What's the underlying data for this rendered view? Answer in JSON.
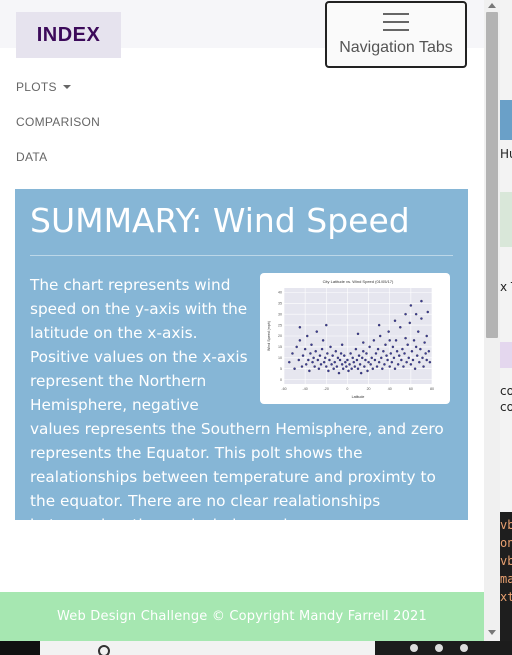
{
  "navbar": {
    "brand": "INDEX",
    "toggler_label": "Navigation Tabs",
    "toggler_icon": "hamburger-icon"
  },
  "nav": {
    "plots": "PLOTS",
    "comparison": "COMPARISON",
    "data": "DATA"
  },
  "summary": {
    "title": "SUMMARY: Wind Speed",
    "text": "The chart represents wind speed on the y-axis with the latitude on the x-axis. Positive values on the x-axis represent the Northern Hemisphere, negative values represents the Southern Hemisphere, and zero represents the Equator. This polt shows the realationships between temperature and proximty to the equator. There are no clear realationships between location and wind speed."
  },
  "thumbnail": {
    "chart_data": {
      "type": "scatter",
      "title": "City Latitude vs. Wind Speed (01/05/17)",
      "xlabel": "Latitude",
      "ylabel": "Wind Speed (mph)",
      "xlim": [
        -60,
        80
      ],
      "ylim": [
        -2,
        42
      ],
      "x_ticks": [
        -60,
        -40,
        -20,
        0,
        20,
        40,
        60,
        80
      ],
      "y_ticks": [
        0,
        5,
        10,
        15,
        20,
        25,
        30,
        35,
        40
      ],
      "grid": true,
      "marker_color": "#1f1f8a",
      "background_color": "#e6e6ef",
      "series": [
        {
          "points": [
            [
              -55,
              8
            ],
            [
              -52,
              12
            ],
            [
              -50,
              5
            ],
            [
              -48,
              15
            ],
            [
              -46,
              9
            ],
            [
              -45,
              18
            ],
            [
              -43,
              6
            ],
            [
              -42,
              11
            ],
            [
              -40,
              14
            ],
            [
              -39,
              7
            ],
            [
              -38,
              20
            ],
            [
              -37,
              9
            ],
            [
              -36,
              4
            ],
            [
              -35,
              12
            ],
            [
              -34,
              16
            ],
            [
              -33,
              8
            ],
            [
              -32,
              10
            ],
            [
              -31,
              6
            ],
            [
              -30,
              13
            ],
            [
              -29,
              22
            ],
            [
              -28,
              9
            ],
            [
              -27,
              5
            ],
            [
              -26,
              11
            ],
            [
              -25,
              7
            ],
            [
              -24,
              14
            ],
            [
              -23,
              18
            ],
            [
              -22,
              8
            ],
            [
              -21,
              10
            ],
            [
              -20,
              6
            ],
            [
              -19,
              12
            ],
            [
              -18,
              4
            ],
            [
              -17,
              9
            ],
            [
              -16,
              15
            ],
            [
              -15,
              7
            ],
            [
              -14,
              11
            ],
            [
              -13,
              5
            ],
            [
              -12,
              8
            ],
            [
              -11,
              13
            ],
            [
              -10,
              6
            ],
            [
              -9,
              10
            ],
            [
              -8,
              3
            ],
            [
              -7,
              9
            ],
            [
              -6,
              12
            ],
            [
              -5,
              7
            ],
            [
              -4,
              5
            ],
            [
              -3,
              11
            ],
            [
              -2,
              8
            ],
            [
              -1,
              6
            ],
            [
              0,
              9
            ],
            [
              1,
              4
            ],
            [
              2,
              7
            ],
            [
              3,
              12
            ],
            [
              4,
              5
            ],
            [
              5,
              10
            ],
            [
              6,
              8
            ],
            [
              7,
              6
            ],
            [
              8,
              14
            ],
            [
              9,
              9
            ],
            [
              10,
              5
            ],
            [
              11,
              11
            ],
            [
              12,
              7
            ],
            [
              13,
              3
            ],
            [
              14,
              10
            ],
            [
              15,
              13
            ],
            [
              16,
              6
            ],
            [
              17,
              9
            ],
            [
              18,
              12
            ],
            [
              19,
              4
            ],
            [
              20,
              8
            ],
            [
              21,
              15
            ],
            [
              22,
              7
            ],
            [
              23,
              10
            ],
            [
              24,
              5
            ],
            [
              25,
              18
            ],
            [
              26,
              9
            ],
            [
              27,
              12
            ],
            [
              28,
              6
            ],
            [
              29,
              14
            ],
            [
              30,
              8
            ],
            [
              31,
              20
            ],
            [
              32,
              10
            ],
            [
              33,
              5
            ],
            [
              34,
              13
            ],
            [
              35,
              7
            ],
            [
              36,
              16
            ],
            [
              37,
              11
            ],
            [
              38,
              9
            ],
            [
              39,
              22
            ],
            [
              40,
              6
            ],
            [
              41,
              12
            ],
            [
              42,
              8
            ],
            [
              43,
              15
            ],
            [
              44,
              10
            ],
            [
              45,
              5
            ],
            [
              46,
              18
            ],
            [
              47,
              13
            ],
            [
              48,
              7
            ],
            [
              49,
              11
            ],
            [
              50,
              24
            ],
            [
              51,
              9
            ],
            [
              52,
              14
            ],
            [
              53,
              6
            ],
            [
              54,
              12
            ],
            [
              55,
              19
            ],
            [
              56,
              8
            ],
            [
              57,
              16
            ],
            [
              58,
              10
            ],
            [
              59,
              26
            ],
            [
              60,
              7
            ],
            [
              61,
              13
            ],
            [
              62,
              9
            ],
            [
              63,
              18
            ],
            [
              64,
              5
            ],
            [
              65,
              15
            ],
            [
              66,
              11
            ],
            [
              67,
              22
            ],
            [
              68,
              8
            ],
            [
              69,
              14
            ],
            [
              70,
              28
            ],
            [
              71,
              10
            ],
            [
              72,
              6
            ],
            [
              73,
              17
            ],
            [
              74,
              12
            ],
            [
              75,
              9
            ],
            [
              76,
              31
            ],
            [
              77,
              13
            ],
            [
              78,
              8
            ],
            [
              60,
              34
            ],
            [
              45,
              27
            ],
            [
              70,
              36
            ],
            [
              -20,
              25
            ],
            [
              10,
              21
            ],
            [
              30,
              25
            ],
            [
              55,
              30
            ],
            [
              -45,
              24
            ],
            [
              65,
              30
            ],
            [
              40,
              18
            ],
            [
              15,
              17
            ],
            [
              -5,
              16
            ],
            [
              75,
              20
            ]
          ]
        }
      ]
    }
  },
  "footer": {
    "text": "Web Design Challenge © Copyright Mandy Farrell 2021"
  },
  "background_window": {
    "text_1": "Hu",
    "text_2": "x T",
    "text_3": "co",
    "text_4": "co",
    "code_lines": [
      "vb",
      "on",
      "vb",
      "ma",
      "xt"
    ]
  }
}
